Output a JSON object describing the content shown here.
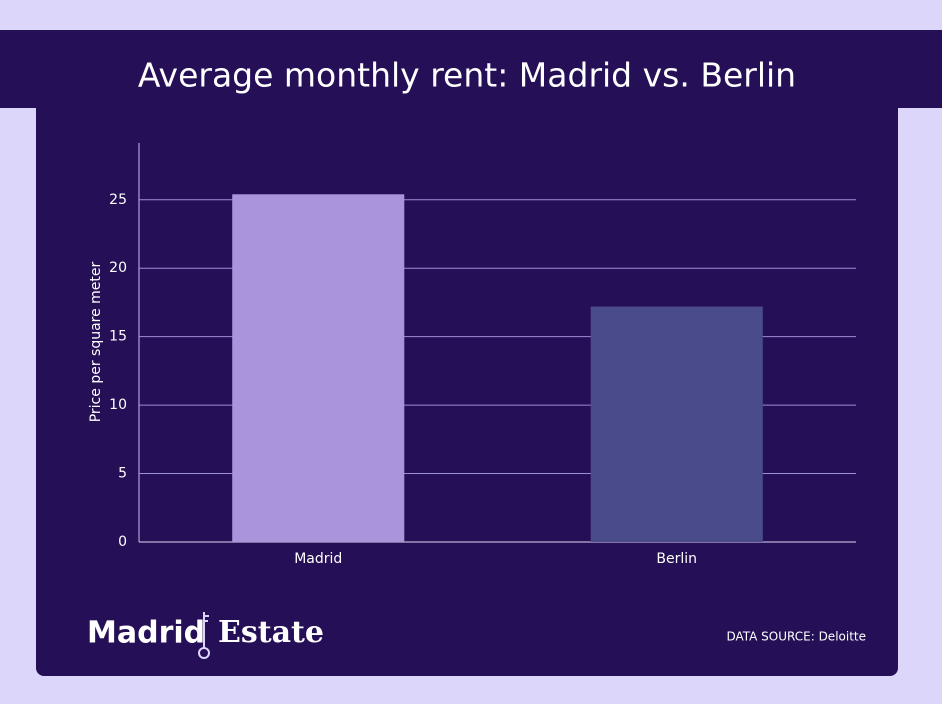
{
  "chart_data": {
    "type": "bar",
    "title": "Average monthly rent: Madrid vs. Berlin",
    "y_label": "Price per square meter",
    "categories": [
      "Madrid",
      "Berlin"
    ],
    "values": [
      25.4,
      17.2
    ],
    "colors": [
      "#a995db",
      "#4a4c8a"
    ],
    "ylim": [
      0,
      29
    ],
    "yticks": [
      0,
      5,
      10,
      15,
      20,
      25
    ],
    "grid": true
  },
  "brand": {
    "left": "Madrid",
    "right": "Estate"
  },
  "source": "DATA SOURCE: Deloitte"
}
